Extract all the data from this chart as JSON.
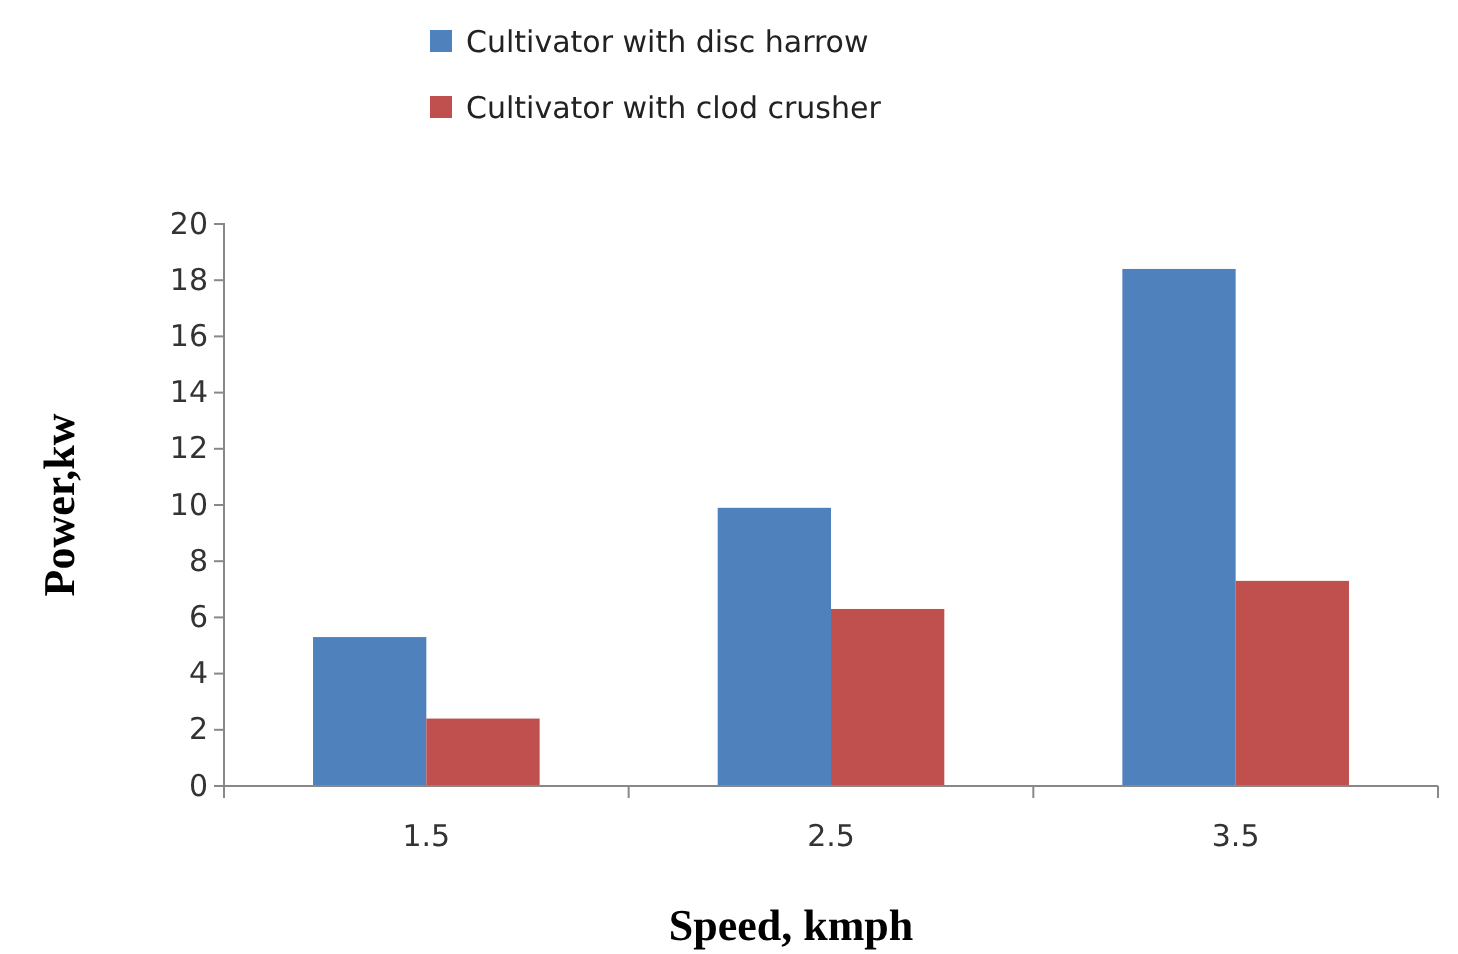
{
  "chart_data": {
    "type": "bar",
    "xlabel": "Speed, kmph",
    "ylabel": "Power,kw",
    "categories": [
      "1.5",
      "2.5",
      "3.5"
    ],
    "series": [
      {
        "name": "Cultivator with disc harrow",
        "color": "#4f81bd",
        "values": [
          5.3,
          9.9,
          18.4
        ]
      },
      {
        "name": "Cultivator with clod crusher",
        "color": "#c0504d",
        "values": [
          2.4,
          6.3,
          7.3
        ]
      }
    ],
    "ylim": [
      0,
      20
    ],
    "yticks": [
      0,
      2,
      4,
      6,
      8,
      10,
      12,
      14,
      16,
      18,
      20
    ],
    "grid": false,
    "legend": "top"
  }
}
